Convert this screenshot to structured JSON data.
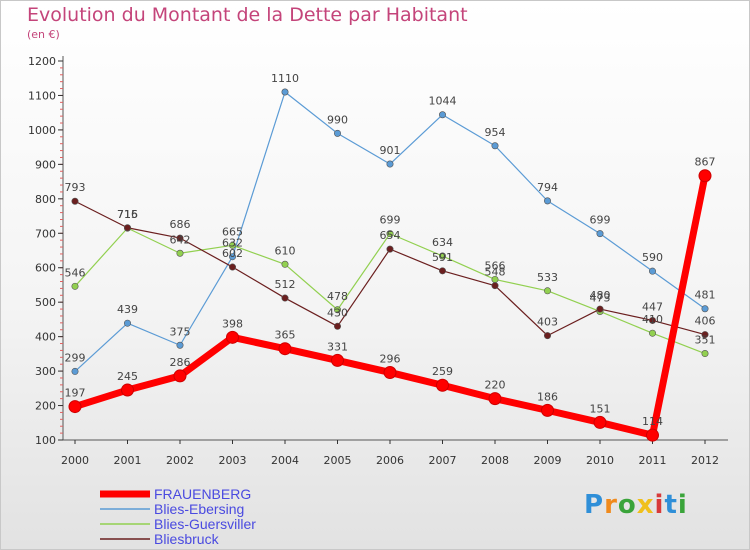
{
  "chart_data": {
    "type": "line",
    "title": "Evolution du Montant de la Dette par Habitant",
    "subtitle": "(en €)",
    "x": [
      "2000",
      "2001",
      "2002",
      "2003",
      "2004",
      "2005",
      "2006",
      "2007",
      "2008",
      "2009",
      "2010",
      "2011",
      "2012"
    ],
    "ylim": [
      100,
      1200
    ],
    "yticks": [
      100,
      200,
      300,
      400,
      500,
      600,
      700,
      800,
      900,
      1000,
      1100,
      1200
    ],
    "grid": false,
    "legend_position": "bottom-left",
    "series": [
      {
        "name": "FRAUENBERG",
        "color": "#ff0000",
        "values": [
          197,
          245,
          286,
          398,
          365,
          331,
          296,
          259,
          220,
          186,
          151,
          114,
          867
        ]
      },
      {
        "name": "Blies-Ebersing",
        "color": "#5b9bd5",
        "values": [
          299,
          439,
          375,
          632,
          1110,
          990,
          901,
          1044,
          954,
          794,
          699,
          590,
          481
        ]
      },
      {
        "name": "Blies-Guersviller",
        "color": "#92d050",
        "values": [
          546,
          715,
          642,
          665,
          610,
          478,
          699,
          634,
          566,
          533,
          473,
          410,
          351
        ]
      },
      {
        "name": "Bliesbruck",
        "color": "#6b1f1f",
        "values": [
          793,
          716,
          686,
          602,
          512,
          430,
          654,
          591,
          548,
          403,
          480,
          447,
          406
        ]
      }
    ]
  },
  "logo": {
    "letters": [
      "P",
      "r",
      "o",
      "x",
      "i",
      "t",
      "i"
    ],
    "colors": [
      "#2f8fd8",
      "#f08a1c",
      "#3aa43a",
      "#f0c01c",
      "#d83a3a",
      "#2f8fd8",
      "#3aa43a"
    ]
  }
}
